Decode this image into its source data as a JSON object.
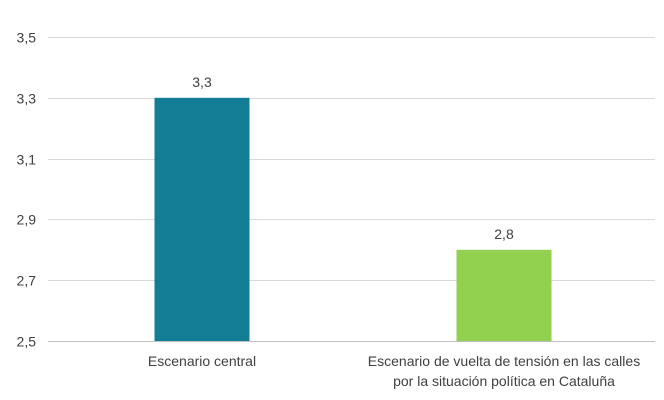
{
  "chart_data": {
    "type": "bar",
    "categories": [
      [
        "Escenario central"
      ],
      [
        "Escenario de vuelta de tensión en las calles",
        "por la situación política en Cataluña"
      ]
    ],
    "values": [
      3.3,
      2.8
    ],
    "data_labels": [
      "3,3",
      "2,8"
    ],
    "y_ticks": [
      2.5,
      2.7,
      2.9,
      3.1,
      3.3,
      3.5
    ],
    "y_tick_labels": [
      "2,5",
      "2,7",
      "2,9",
      "3,1",
      "3,3",
      "3,5"
    ],
    "ylim": [
      2.5,
      3.5
    ],
    "grid": true,
    "legend": "none",
    "colors": [
      "#147d96",
      "#92d050"
    ],
    "gridline_color": "#d9d9d9"
  }
}
